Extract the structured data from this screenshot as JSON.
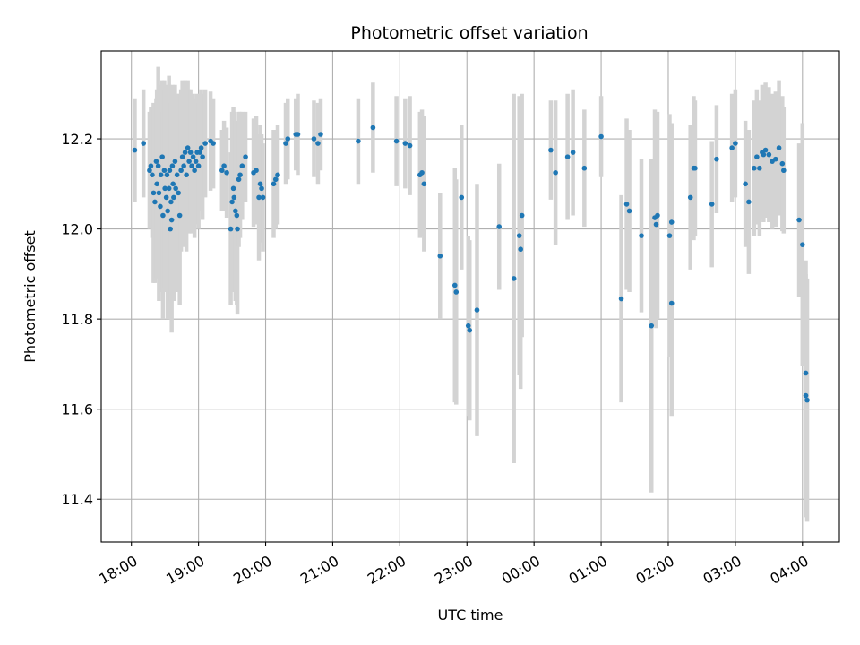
{
  "chart_data": {
    "type": "scatter",
    "title": "Photometric offset variation",
    "xlabel": "UTC time",
    "ylabel": "Photometric offset",
    "x_unit": "hours (UTC, continuous, 24 = 00:00 next day)",
    "xlim": [
      17.55,
      28.55
    ],
    "ylim": [
      11.305,
      12.395
    ],
    "x_ticks": [
      18,
      19,
      20,
      21,
      22,
      23,
      24,
      25,
      26,
      27,
      28
    ],
    "x_tick_labels": [
      "18:00",
      "19:00",
      "20:00",
      "21:00",
      "22:00",
      "23:00",
      "00:00",
      "01:00",
      "02:00",
      "03:00",
      "04:00"
    ],
    "y_ticks": [
      11.4,
      11.6,
      11.8,
      12.0,
      12.2
    ],
    "y_tick_labels": [
      "11.4",
      "11.6",
      "11.8",
      "12.0",
      "12.2"
    ],
    "grid": true,
    "colors": {
      "points": "#1f77b4",
      "errorbars": "#d3d3d3"
    },
    "points": [
      [
        18.05,
        12.175,
        0.115
      ],
      [
        18.18,
        12.19,
        0.12
      ],
      [
        18.27,
        12.13,
        0.13
      ],
      [
        18.29,
        12.14,
        0.13
      ],
      [
        18.31,
        12.12,
        0.14
      ],
      [
        18.33,
        12.08,
        0.2
      ],
      [
        18.35,
        12.06,
        0.18
      ],
      [
        18.37,
        12.15,
        0.14
      ],
      [
        18.38,
        12.1,
        0.21
      ],
      [
        18.4,
        12.14,
        0.22
      ],
      [
        18.41,
        12.08,
        0.24
      ],
      [
        18.43,
        12.05,
        0.19
      ],
      [
        18.44,
        12.12,
        0.2
      ],
      [
        18.46,
        12.16,
        0.17
      ],
      [
        18.47,
        12.03,
        0.23
      ],
      [
        18.49,
        12.13,
        0.2
      ],
      [
        18.5,
        12.09,
        0.22
      ],
      [
        18.52,
        12.07,
        0.21
      ],
      [
        18.53,
        12.12,
        0.2
      ],
      [
        18.54,
        12.04,
        0.24
      ],
      [
        18.56,
        12.09,
        0.25
      ],
      [
        18.57,
        12.13,
        0.19
      ],
      [
        18.58,
        12.0,
        0.2
      ],
      [
        18.59,
        12.06,
        0.22
      ],
      [
        18.6,
        12.02,
        0.25
      ],
      [
        18.61,
        12.14,
        0.18
      ],
      [
        18.62,
        12.1,
        0.21
      ],
      [
        18.63,
        12.07,
        0.23
      ],
      [
        18.65,
        12.15,
        0.17
      ],
      [
        18.66,
        12.09,
        0.2
      ],
      [
        18.68,
        12.12,
        0.18
      ],
      [
        18.7,
        12.08,
        0.22
      ],
      [
        18.72,
        12.03,
        0.2
      ],
      [
        18.74,
        12.13,
        0.18
      ],
      [
        18.76,
        12.16,
        0.17
      ],
      [
        18.78,
        12.14,
        0.18
      ],
      [
        18.8,
        12.17,
        0.16
      ],
      [
        18.82,
        12.12,
        0.17
      ],
      [
        18.84,
        12.18,
        0.15
      ],
      [
        18.86,
        12.15,
        0.16
      ],
      [
        18.88,
        12.17,
        0.14
      ],
      [
        18.9,
        12.14,
        0.15
      ],
      [
        18.92,
        12.16,
        0.14
      ],
      [
        18.94,
        12.13,
        0.15
      ],
      [
        18.96,
        12.15,
        0.14
      ],
      [
        18.98,
        12.17,
        0.13
      ],
      [
        19.0,
        12.14,
        0.14
      ],
      [
        19.02,
        12.17,
        0.13
      ],
      [
        19.04,
        12.18,
        0.13
      ],
      [
        19.06,
        12.16,
        0.14
      ],
      [
        19.1,
        12.19,
        0.12
      ],
      [
        19.18,
        12.195,
        0.11
      ],
      [
        19.22,
        12.19,
        0.1
      ],
      [
        19.35,
        12.13,
        0.09
      ],
      [
        19.38,
        12.14,
        0.1
      ],
      [
        19.42,
        12.125,
        0.1
      ],
      [
        19.48,
        12.0,
        0.17
      ],
      [
        19.5,
        12.06,
        0.2
      ],
      [
        19.52,
        12.09,
        0.18
      ],
      [
        19.53,
        12.07,
        0.19
      ],
      [
        19.55,
        12.04,
        0.2
      ],
      [
        19.57,
        12.03,
        0.2
      ],
      [
        19.58,
        12.0,
        0.19
      ],
      [
        19.6,
        12.11,
        0.15
      ],
      [
        19.62,
        12.12,
        0.14
      ],
      [
        19.65,
        12.14,
        0.12
      ],
      [
        19.7,
        12.16,
        0.1
      ],
      [
        19.82,
        12.125,
        0.12
      ],
      [
        19.86,
        12.13,
        0.12
      ],
      [
        19.9,
        12.07,
        0.14
      ],
      [
        19.92,
        12.1,
        0.13
      ],
      [
        19.94,
        12.09,
        0.12
      ],
      [
        19.96,
        12.07,
        0.12
      ],
      [
        20.12,
        12.1,
        0.12
      ],
      [
        20.15,
        12.11,
        0.11
      ],
      [
        20.18,
        12.12,
        0.11
      ],
      [
        20.3,
        12.19,
        0.09
      ],
      [
        20.33,
        12.2,
        0.09
      ],
      [
        20.45,
        12.21,
        0.08
      ],
      [
        20.48,
        12.21,
        0.09
      ],
      [
        20.72,
        12.2,
        0.085
      ],
      [
        20.78,
        12.19,
        0.09
      ],
      [
        20.82,
        12.21,
        0.08
      ],
      [
        21.38,
        12.195,
        0.095
      ],
      [
        21.6,
        12.225,
        0.1
      ],
      [
        21.95,
        12.195,
        0.1
      ],
      [
        22.08,
        12.19,
        0.1
      ],
      [
        22.15,
        12.185,
        0.11
      ],
      [
        22.3,
        12.12,
        0.14
      ],
      [
        22.33,
        12.125,
        0.14
      ],
      [
        22.36,
        12.1,
        0.15
      ],
      [
        22.6,
        11.94,
        0.14
      ],
      [
        22.82,
        11.875,
        0.26
      ],
      [
        22.84,
        11.86,
        0.25
      ],
      [
        22.92,
        12.07,
        0.16
      ],
      [
        23.02,
        11.785,
        0.2
      ],
      [
        23.04,
        11.775,
        0.2
      ],
      [
        23.15,
        11.82,
        0.28
      ],
      [
        23.48,
        12.005,
        0.14
      ],
      [
        23.7,
        11.89,
        0.41
      ],
      [
        23.78,
        11.985,
        0.31
      ],
      [
        23.8,
        11.955,
        0.31
      ],
      [
        23.82,
        12.03,
        0.27
      ],
      [
        24.25,
        12.175,
        0.11
      ],
      [
        24.32,
        12.125,
        0.16
      ],
      [
        24.5,
        12.16,
        0.14
      ],
      [
        24.58,
        12.17,
        0.14
      ],
      [
        24.75,
        12.135,
        0.13
      ],
      [
        25.0,
        12.205,
        0.09
      ],
      [
        25.3,
        11.845,
        0.23
      ],
      [
        25.38,
        12.055,
        0.19
      ],
      [
        25.42,
        12.04,
        0.18
      ],
      [
        25.6,
        11.985,
        0.17
      ],
      [
        25.75,
        11.785,
        0.37
      ],
      [
        25.8,
        12.025,
        0.24
      ],
      [
        25.82,
        12.01,
        0.23
      ],
      [
        25.84,
        12.03,
        0.23
      ],
      [
        26.02,
        11.985,
        0.27
      ],
      [
        26.05,
        12.015,
        0.22
      ],
      [
        26.05,
        11.835,
        0.25
      ],
      [
        26.33,
        12.07,
        0.16
      ],
      [
        26.38,
        12.135,
        0.16
      ],
      [
        26.4,
        12.135,
        0.15
      ],
      [
        26.65,
        12.055,
        0.14
      ],
      [
        26.72,
        12.155,
        0.12
      ],
      [
        26.95,
        12.18,
        0.12
      ],
      [
        27.0,
        12.19,
        0.12
      ],
      [
        27.15,
        12.1,
        0.14
      ],
      [
        27.2,
        12.06,
        0.16
      ],
      [
        27.28,
        12.135,
        0.15
      ],
      [
        27.32,
        12.16,
        0.15
      ],
      [
        27.36,
        12.135,
        0.15
      ],
      [
        27.4,
        12.17,
        0.15
      ],
      [
        27.42,
        12.165,
        0.15
      ],
      [
        27.45,
        12.175,
        0.15
      ],
      [
        27.5,
        12.165,
        0.15
      ],
      [
        27.55,
        12.15,
        0.15
      ],
      [
        27.6,
        12.155,
        0.15
      ],
      [
        27.65,
        12.18,
        0.15
      ],
      [
        27.7,
        12.145,
        0.15
      ],
      [
        27.72,
        12.13,
        0.14
      ],
      [
        27.95,
        12.02,
        0.17
      ],
      [
        28.0,
        11.965,
        0.27
      ],
      [
        28.05,
        11.68,
        0.25
      ],
      [
        28.05,
        11.63,
        0.27
      ],
      [
        28.07,
        11.62,
        0.27
      ]
    ]
  }
}
